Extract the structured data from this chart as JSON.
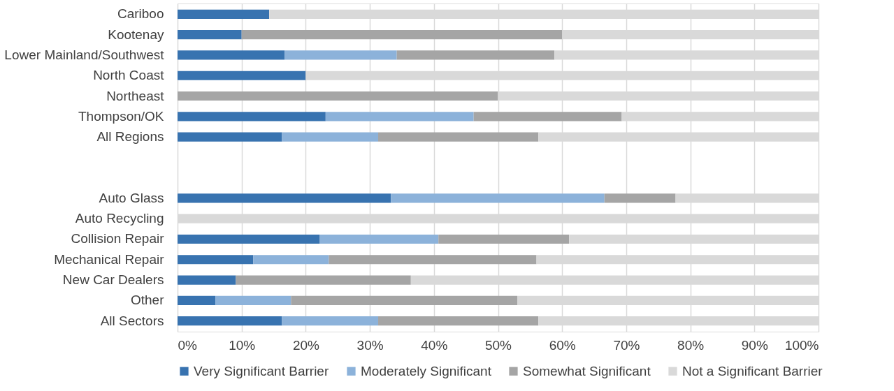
{
  "chart_data": {
    "type": "bar",
    "orientation": "horizontal",
    "stacked": true,
    "categories": [
      "Cariboo",
      "Kootenay",
      "Lower Mainland/Southwest",
      "North Coast",
      "Northeast",
      "Thompson/OK",
      "All Regions",
      null,
      null,
      "Auto Glass",
      "Auto Recycling",
      "Collision Repair",
      "Mechanical Repair",
      "New Car Dealers",
      "Other",
      "All Sectors"
    ],
    "series": [
      {
        "name": "Very Significant Barrier",
        "color": "#3873b0",
        "values": [
          14.3,
          10,
          16.7,
          20,
          0,
          23.1,
          16.3,
          null,
          null,
          33.3,
          0,
          22.2,
          11.8,
          9.1,
          5.9,
          16.3
        ]
      },
      {
        "name": "Moderately Significant",
        "color": "#8cb2da",
        "values": [
          0,
          0,
          17.5,
          0,
          0,
          23.1,
          15,
          null,
          null,
          33.3,
          0,
          18.5,
          11.8,
          0,
          11.8,
          15
        ]
      },
      {
        "name": "Somewhat Significant",
        "color": "#a5a5a5",
        "values": [
          0,
          50,
          24.6,
          0,
          50,
          23.1,
          25,
          null,
          null,
          11.1,
          0,
          20.4,
          32.4,
          27.3,
          35.3,
          25
        ]
      },
      {
        "name": "Not a Significant Barrier",
        "color": "#d9d9d9",
        "values": [
          85.7,
          40,
          41.2,
          80,
          50,
          30.7,
          43.7,
          null,
          null,
          22.3,
          100,
          38.9,
          44.1,
          63.6,
          47,
          43.7
        ]
      }
    ],
    "xlim": [
      0,
      100
    ],
    "xticks": [
      {
        "value": 0,
        "label": "0%"
      },
      {
        "value": 10,
        "label": "10%"
      },
      {
        "value": 20,
        "label": "20%"
      },
      {
        "value": 30,
        "label": "30%"
      },
      {
        "value": 40,
        "label": "40%"
      },
      {
        "value": 50,
        "label": "50%"
      },
      {
        "value": 60,
        "label": "60%"
      },
      {
        "value": 70,
        "label": "70%"
      },
      {
        "value": 80,
        "label": "80%"
      },
      {
        "value": 90,
        "label": "90%"
      },
      {
        "value": 100,
        "label": "100%"
      }
    ],
    "grid": "x",
    "legend": "bottom"
  }
}
